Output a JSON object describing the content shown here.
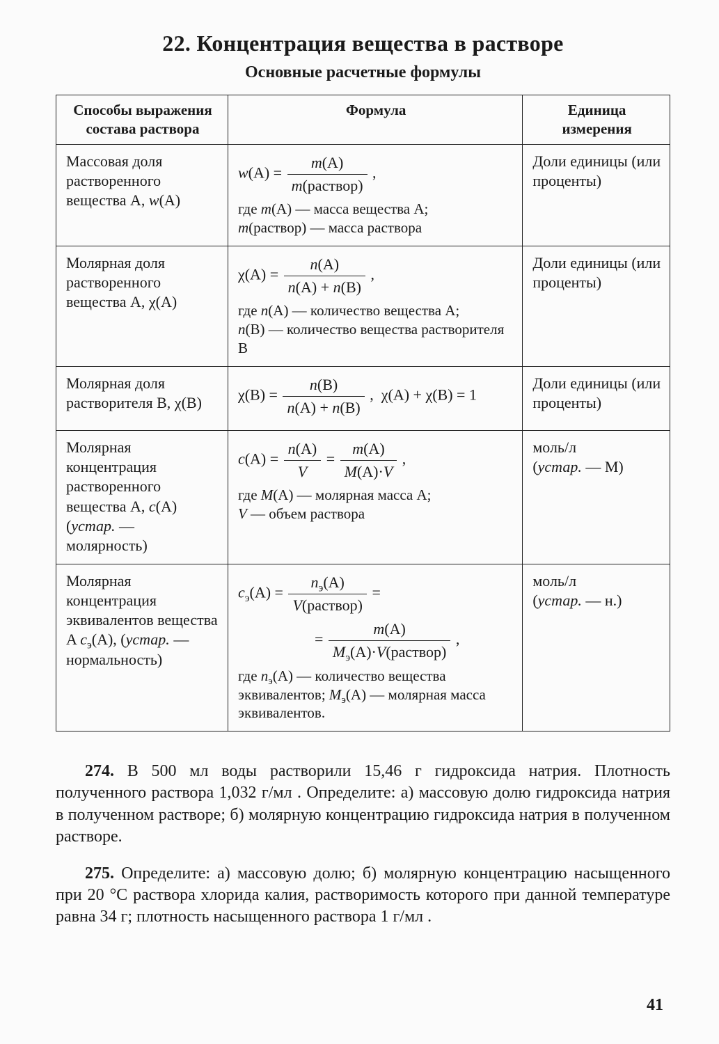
{
  "title": "22. Концентрация вещества в растворе",
  "subtitle": "Основные расчетные формулы",
  "columns": {
    "a": "Способы выражения состава раствора",
    "b": "Формула",
    "c": "Единица измерения"
  },
  "rows": [
    {
      "name": "Массовая доля растворенного вещества A, <em class=\"it\">w</em>(A)",
      "formula": "<div class=\"formula-line\"><em class=\"it\">w</em>(A) = <span class=\"frac\"><span class=\"num\"><em class=\"it\">m</em>(A)</span><span class=\"den\"><em class=\"it\">m</em>(раствор)</span></span> ,</div><div class=\"expl\">где <em class=\"it\">m</em>(A) — масса вещества A;<br><em class=\"it\">m</em>(раствор) — масса раствора</div>",
      "unit": "Доли единицы (или проценты)"
    },
    {
      "name": "Молярная доля растворенного вещества A, χ(A)",
      "formula": "<div class=\"formula-line\">χ(A) = <span class=\"frac\"><span class=\"num\"><em class=\"it\">n</em>(A)</span><span class=\"den\"><em class=\"it\">n</em>(A) + <em class=\"it\">n</em>(B)</span></span> ,</div><div class=\"expl\">где <em class=\"it\">n</em>(A) — количество вещества A;<br><em class=\"it\">n</em>(B) — количество вещества растворителя B</div>",
      "unit": "Доли единицы (или проценты)"
    },
    {
      "name": "Молярная доля растворителя B, χ(B)",
      "formula": "<div class=\"formula-line\">χ(B) = <span class=\"frac\"><span class=\"num\"><em class=\"it\">n</em>(B)</span><span class=\"den\"><em class=\"it\">n</em>(A) + <em class=\"it\">n</em>(B)</span></span> ,&nbsp; χ(A) + χ(B) = 1</div>",
      "unit": "Доли единицы (или проценты)"
    },
    {
      "name": "Молярная концентрация растворенного вещества A, <em class=\"it\">c</em>(A) (<em class=\"it\">устар.</em> — молярность)",
      "formula": "<div class=\"formula-line\"><em class=\"it\">c</em>(A) = <span class=\"frac\"><span class=\"num\"><em class=\"it\">n</em>(A)</span><span class=\"den\"><em class=\"it\">V</em></span></span> = <span class=\"frac\"><span class=\"num\"><em class=\"it\">m</em>(A)</span><span class=\"den\"><em class=\"it\">M</em>(A)·<em class=\"it\">V</em></span></span> ,</div><div class=\"expl\">где <em class=\"it\">M</em>(A) — молярная масса A;<br><em class=\"it\">V</em> — объем раствора</div>",
      "unit": "моль/л<br>(<em class=\"it\">устар.</em> — М)"
    },
    {
      "name": "Молярная концентрация эквивалентов вещества A <em class=\"it\">c</em><sub>э</sub>(A), (<em class=\"it\">устар.</em> — нормальность)",
      "formula": "<div class=\"formula-line\"><em class=\"it\">c</em><sub>э</sub>(A) = <span class=\"frac\"><span class=\"num\"><em class=\"it\">n</em><sub>э</sub>(A)</span><span class=\"den\"><em class=\"it\">V</em>(раствор)</span></span> =</div><div class=\"formula-line\" style=\"padding-left:110px;\">= <span class=\"frac\"><span class=\"num\"><em class=\"it\">m</em>(A)</span><span class=\"den\"><em class=\"it\">M</em><sub>э</sub>(A)·<em class=\"it\">V</em>(раствор)</span></span> ,</div><div class=\"expl\">где <em class=\"it\">n</em><sub>э</sub>(A) — количество вещества эквивалентов; <em class=\"it\">M</em><sub>э</sub>(A) — молярная масса эквивалентов.</div>",
      "unit": "моль/л<br>(<em class=\"it\">устар.</em> — н.)"
    }
  ],
  "tasks": [
    "<strong>274.</strong> В 500 мл воды растворили 15,46 г гидроксида натрия. Плотность полученного раствора 1,032 г/мл . Определите: а) массовую долю гидроксида натрия в полученном растворе; б) молярную концентрацию гидроксида натрия в полученном растворе.",
    "<strong>275.</strong> Определите: а) массовую долю; б) молярную концентрацию насыщенного при 20 °С раствора хлорида калия, растворимость которого при данной температуре равна 34 г; плотность насыщенного раствора 1 г/мл ."
  ],
  "page_number": "41"
}
